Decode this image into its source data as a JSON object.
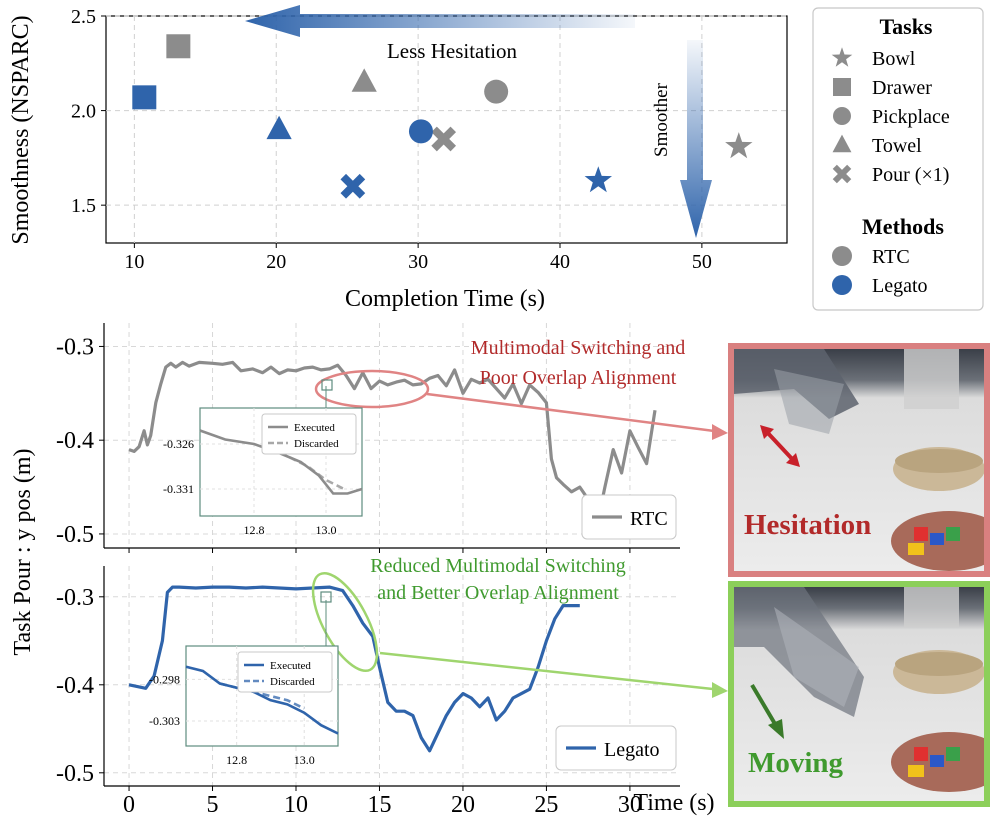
{
  "chart_data": [
    {
      "type": "scatter",
      "xlabel": "Completion Time (s)",
      "ylabel": "Smoothness (NSPARC)",
      "xlim": [
        8,
        56
      ],
      "ylim": [
        1.3,
        2.5
      ],
      "xticks": [
        10,
        20,
        30,
        40,
        50
      ],
      "yticks": [
        1.5,
        2.0,
        2.5
      ],
      "grid": true,
      "annotations": [
        "Less Hesitation",
        "Smoother"
      ],
      "legend": {
        "placement": "right",
        "tasks_title": "Tasks",
        "tasks": [
          {
            "label": "Bowl",
            "marker": "star"
          },
          {
            "label": "Drawer",
            "marker": "square"
          },
          {
            "label": "Pickplace",
            "marker": "circle"
          },
          {
            "label": "Towel",
            "marker": "triangle"
          },
          {
            "label": "Pour (×1)",
            "marker": "x"
          }
        ],
        "methods_title": "Methods",
        "methods": [
          {
            "label": "RTC",
            "color": "#8c8c8c"
          },
          {
            "label": "Legato",
            "color": "#2f64ab"
          }
        ]
      },
      "points": [
        {
          "method": "RTC",
          "task": "Drawer",
          "x": 13.1,
          "y": 2.34
        },
        {
          "method": "RTC",
          "task": "Towel",
          "x": 26.2,
          "y": 2.15
        },
        {
          "method": "RTC",
          "task": "Pickplace",
          "x": 35.5,
          "y": 2.1
        },
        {
          "method": "RTC",
          "task": "Pour (×1)",
          "x": 31.8,
          "y": 1.85
        },
        {
          "method": "RTC",
          "task": "Bowl",
          "x": 52.6,
          "y": 1.81
        },
        {
          "method": "Legato",
          "task": "Drawer",
          "x": 10.7,
          "y": 2.07
        },
        {
          "method": "Legato",
          "task": "Towel",
          "x": 20.2,
          "y": 1.9
        },
        {
          "method": "Legato",
          "task": "Pickplace",
          "x": 30.2,
          "y": 1.89
        },
        {
          "method": "Legato",
          "task": "Pour (×1)",
          "x": 25.4,
          "y": 1.6
        },
        {
          "method": "Legato",
          "task": "Bowl",
          "x": 42.7,
          "y": 1.63
        }
      ]
    },
    {
      "type": "line",
      "ylabel": "Task Pour :  y pos (m)",
      "xlabel": "Time (s)",
      "xlim": [
        -1.5,
        33
      ],
      "xticks": [
        0,
        5,
        10,
        15,
        20,
        25,
        30
      ],
      "yticks": [
        -0.3,
        -0.4,
        -0.5
      ],
      "ytick_labels": [
        "-0.3",
        "-0.4",
        "-0.5"
      ],
      "ylim_rtc": [
        -0.515,
        -0.275
      ],
      "ylim_legato": [
        -0.515,
        -0.265
      ],
      "grid": true,
      "series": [
        {
          "name": "RTC",
          "color": "#8c8c8c",
          "x": [
            0,
            0.3,
            0.6,
            0.9,
            1.1,
            1.3,
            1.6,
            1.9,
            2.2,
            2.5,
            2.8,
            3.2,
            3.6,
            4.2,
            5,
            5.6,
            6.2,
            6.7,
            7.4,
            8.0,
            8.5,
            9.0,
            9.5,
            10.0,
            10.5,
            11.0,
            11.5,
            12.0,
            12.5,
            13.0,
            13.5,
            14.0,
            14.5,
            15.0,
            15.5,
            16.0,
            16.5,
            17.0,
            17.5,
            18.0,
            18.5,
            19.0,
            19.5,
            20.0,
            20.5,
            21.0,
            21.5,
            22.0,
            22.5,
            23.0,
            23.5,
            24.0,
            24.5,
            25.0,
            25.3,
            25.6,
            26.0,
            26.5,
            27.0,
            27.5,
            28.0,
            28.5,
            29.0,
            29.5,
            30.0,
            30.5,
            31.0,
            31.5
          ],
          "y": [
            -0.41,
            -0.412,
            -0.407,
            -0.39,
            -0.405,
            -0.395,
            -0.36,
            -0.34,
            -0.322,
            -0.318,
            -0.322,
            -0.317,
            -0.321,
            -0.317,
            -0.318,
            -0.319,
            -0.317,
            -0.326,
            -0.324,
            -0.328,
            -0.322,
            -0.329,
            -0.325,
            -0.326,
            -0.323,
            -0.322,
            -0.325,
            -0.324,
            -0.32,
            -0.331,
            -0.345,
            -0.328,
            -0.345,
            -0.337,
            -0.341,
            -0.338,
            -0.336,
            -0.341,
            -0.34,
            -0.334,
            -0.331,
            -0.342,
            -0.325,
            -0.35,
            -0.335,
            -0.339,
            -0.335,
            -0.345,
            -0.355,
            -0.34,
            -0.361,
            -0.341,
            -0.349,
            -0.36,
            -0.42,
            -0.44,
            -0.447,
            -0.455,
            -0.45,
            -0.463,
            -0.493,
            -0.45,
            -0.41,
            -0.435,
            -0.39,
            -0.408,
            -0.425,
            -0.368
          ],
          "note_x_range": "trace ends near 31.5 s"
        },
        {
          "name": "Legato",
          "color": "#2f64ab",
          "x": [
            0,
            0.5,
            1.0,
            1.5,
            2.0,
            2.3,
            2.6,
            3,
            4,
            5,
            6,
            7,
            8,
            9,
            10,
            11,
            12,
            12.8,
            13.4,
            14,
            14.6,
            15,
            15.5,
            16,
            16.5,
            17,
            17.5,
            18,
            18.5,
            19,
            19.5,
            20,
            20.5,
            21,
            21.5,
            22,
            22.5,
            23,
            23.5,
            24,
            24.5,
            25,
            25.5,
            26,
            26.5,
            27
          ],
          "y": [
            -0.4,
            -0.402,
            -0.404,
            -0.39,
            -0.35,
            -0.295,
            -0.289,
            -0.289,
            -0.29,
            -0.289,
            -0.289,
            -0.29,
            -0.289,
            -0.29,
            -0.291,
            -0.29,
            -0.289,
            -0.293,
            -0.31,
            -0.33,
            -0.345,
            -0.38,
            -0.42,
            -0.43,
            -0.43,
            -0.435,
            -0.46,
            -0.475,
            -0.455,
            -0.435,
            -0.42,
            -0.41,
            -0.415,
            -0.425,
            -0.415,
            -0.44,
            -0.43,
            -0.415,
            -0.41,
            -0.405,
            -0.38,
            -0.35,
            -0.325,
            -0.31,
            -0.31,
            -0.31
          ]
        }
      ],
      "legends": [
        {
          "series": "RTC",
          "placement": "lower-right"
        },
        {
          "series": "Legato",
          "placement": "lower-right"
        }
      ],
      "callouts": [
        {
          "text_lines": [
            "Multimodal Switching and",
            "Poor Overlap Alignment"
          ],
          "color": "#b22a2a"
        },
        {
          "text_lines": [
            "Reduced Multimodal Switching",
            "and Better Overlap Alignment"
          ],
          "color": "#3f9a2e"
        }
      ]
    },
    {
      "type": "line",
      "inset_of": "RTC",
      "xlim": [
        12.65,
        13.1
      ],
      "xticks": [
        12.8,
        13.0
      ],
      "yticks": [
        -0.326,
        -0.331
      ],
      "ylim": [
        -0.334,
        -0.322
      ],
      "series": [
        {
          "name": "Executed",
          "style": "solid",
          "x": [
            12.65,
            12.72,
            12.8,
            12.87,
            12.93,
            12.98,
            13.02,
            13.06,
            13.1
          ],
          "y": [
            -0.3245,
            -0.3255,
            -0.326,
            -0.327,
            -0.328,
            -0.3295,
            -0.3315,
            -0.3315,
            -0.331
          ]
        },
        {
          "name": "Discarded",
          "style": "dashed",
          "x": [
            12.85,
            12.9,
            12.95,
            13.0,
            13.05
          ],
          "y": [
            -0.326,
            -0.3275,
            -0.3285,
            -0.33,
            -0.331
          ]
        }
      ]
    },
    {
      "type": "line",
      "inset_of": "Legato",
      "xlim": [
        12.65,
        13.1
      ],
      "xticks": [
        12.8,
        13.0
      ],
      "yticks": [
        -0.298,
        -0.303
      ],
      "ylim": [
        -0.306,
        -0.294
      ],
      "series": [
        {
          "name": "Executed",
          "style": "solid",
          "x": [
            12.65,
            12.7,
            12.75,
            12.8,
            12.85,
            12.9,
            12.95,
            13.0,
            13.05,
            13.1
          ],
          "y": [
            -0.2965,
            -0.297,
            -0.2985,
            -0.299,
            -0.2995,
            -0.3005,
            -0.301,
            -0.302,
            -0.3035,
            -0.3045
          ]
        },
        {
          "name": "Discarded",
          "style": "dashed",
          "x": [
            12.75,
            12.8,
            12.85,
            12.9,
            12.95,
            13.0
          ],
          "y": [
            -0.2985,
            -0.299,
            -0.2995,
            -0.3,
            -0.3005,
            -0.3015
          ]
        }
      ]
    }
  ],
  "photos": [
    {
      "label": "Hesitation",
      "label_color": "#b22a2a",
      "border_color": "#d98080"
    },
    {
      "label": "Moving",
      "label_color": "#3f9a2e",
      "border_color": "#8ccf5a"
    }
  ]
}
